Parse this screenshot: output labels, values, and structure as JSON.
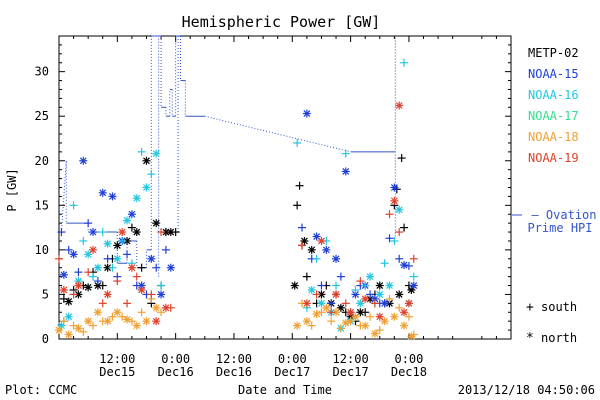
{
  "chart_data": {
    "type": "scatter",
    "title": "Hemispheric Power [GW]",
    "ylabel": "P [GW]",
    "xlabel": "Date and Time",
    "ylim": [
      0,
      34
    ],
    "yticks": [
      0,
      5,
      10,
      15,
      20,
      25,
      30
    ],
    "xlim": [
      0,
      93
    ],
    "xticks": [
      {
        "x": 12,
        "time": "12:00",
        "date": "Dec15"
      },
      {
        "x": 24,
        "time": "0:00",
        "date": "Dec16"
      },
      {
        "x": 36,
        "time": "12:00",
        "date": "Dec16"
      },
      {
        "x": 48,
        "time": "0:00",
        "date": "Dec17"
      },
      {
        "x": 60,
        "time": "12:00",
        "date": "Dec17"
      },
      {
        "x": 72,
        "time": "0:00",
        "date": "Dec18"
      }
    ],
    "grid": false,
    "legend_position": "right",
    "series": [
      {
        "name": "METP-02",
        "color": "#000000"
      },
      {
        "name": "NOAA-15",
        "color": "#1f3fd9"
      },
      {
        "name": "NOAA-16",
        "color": "#22c7e0"
      },
      {
        "name": "NOAA-17",
        "color": "#33e08f"
      },
      {
        "name": "NOAA-18",
        "color": "#f0a030"
      },
      {
        "name": "NOAA-19",
        "color": "#e0402a"
      }
    ],
    "ovation": {
      "label_line1": "— Ovation",
      "label_line2": "Prime HPI",
      "color": "#3355cc",
      "x": [
        0.5,
        1.5,
        1.5,
        6,
        6,
        12,
        12,
        14,
        14,
        16,
        16,
        18,
        18,
        19,
        19,
        21,
        21,
        22,
        22,
        22.8,
        22.8,
        23.3,
        23.3,
        24,
        24,
        25,
        25,
        26,
        26,
        30,
        60,
        61,
        63,
        65,
        67,
        69.2
      ],
      "y": [
        12,
        20,
        13,
        13,
        12,
        12,
        8.5,
        8.5,
        11,
        11,
        8,
        8,
        10,
        10,
        34,
        34,
        26,
        26,
        25,
        25,
        28,
        28,
        25,
        25,
        34,
        34,
        29,
        29,
        25,
        25,
        21,
        21,
        21,
        21,
        21,
        21
      ]
    },
    "ovation_drops": [
      {
        "x": 20.5,
        "y0": 7
      },
      {
        "x": 24.5,
        "y0": 12
      },
      {
        "x": 69.2,
        "y0": 11.5
      }
    ],
    "points": {
      "METP-02": {
        "plus": [
          [
            1,
            4.5
          ],
          [
            3,
            5.5
          ],
          [
            5,
            6
          ],
          [
            7,
            7.5
          ],
          [
            9,
            6
          ],
          [
            11,
            9
          ],
          [
            13,
            11
          ],
          [
            15,
            12.5
          ],
          [
            17,
            8
          ],
          [
            19,
            4
          ],
          [
            21,
            6
          ],
          [
            22,
            12
          ],
          [
            24,
            12
          ],
          [
            49,
            15
          ],
          [
            49.5,
            17.2
          ],
          [
            50,
            10.5
          ],
          [
            51,
            7
          ],
          [
            53,
            4
          ],
          [
            55,
            6
          ],
          [
            57,
            5
          ],
          [
            59,
            3
          ],
          [
            61,
            2
          ],
          [
            63,
            3
          ],
          [
            65,
            5
          ],
          [
            67,
            4
          ],
          [
            69,
            15
          ],
          [
            69.5,
            16.8
          ],
          [
            70.5,
            20.3
          ],
          [
            71,
            12.5
          ],
          [
            72,
            6
          ]
        ],
        "star": [
          [
            2,
            4.2
          ],
          [
            4,
            5
          ],
          [
            6,
            5.8
          ],
          [
            8,
            6
          ],
          [
            10,
            8
          ],
          [
            12,
            10.5
          ],
          [
            14,
            11
          ],
          [
            16,
            12
          ],
          [
            18,
            20
          ],
          [
            20,
            13
          ],
          [
            22,
            12
          ],
          [
            23,
            12
          ],
          [
            48.5,
            6
          ],
          [
            50.5,
            11
          ],
          [
            52,
            10
          ],
          [
            54,
            5
          ],
          [
            56,
            4
          ],
          [
            58,
            3.5
          ],
          [
            60,
            2.5
          ],
          [
            62,
            3
          ],
          [
            64,
            4.5
          ],
          [
            66,
            6
          ],
          [
            68,
            4
          ],
          [
            70,
            5
          ],
          [
            72.5,
            5.5
          ]
        ]
      },
      "NOAA-15": {
        "plus": [
          [
            0.5,
            12
          ],
          [
            2,
            10
          ],
          [
            4,
            7.5
          ],
          [
            6,
            13
          ],
          [
            8,
            6.5
          ],
          [
            10,
            9
          ],
          [
            12,
            7
          ],
          [
            14,
            9.5
          ],
          [
            16,
            6
          ],
          [
            18,
            5
          ],
          [
            20,
            8
          ],
          [
            22,
            10
          ],
          [
            50,
            12.5
          ],
          [
            52,
            9
          ],
          [
            54,
            6
          ],
          [
            56,
            4
          ],
          [
            58,
            7
          ],
          [
            60,
            3
          ],
          [
            62,
            6
          ],
          [
            64,
            5
          ],
          [
            66,
            4
          ],
          [
            68,
            11.3
          ],
          [
            70,
            9
          ],
          [
            72,
            8.2
          ]
        ],
        "star": [
          [
            1,
            7.2
          ],
          [
            3,
            9.5
          ],
          [
            5,
            20
          ],
          [
            7,
            12
          ],
          [
            9,
            16.4
          ],
          [
            11,
            16
          ],
          [
            13,
            11
          ],
          [
            15,
            14
          ],
          [
            17,
            6
          ],
          [
            19,
            9
          ],
          [
            21,
            5
          ],
          [
            23,
            8
          ],
          [
            51,
            25.3
          ],
          [
            53,
            11.5
          ],
          [
            55,
            10
          ],
          [
            57,
            9
          ],
          [
            59,
            18.8
          ],
          [
            61,
            5
          ],
          [
            63,
            6
          ],
          [
            65,
            4.5
          ],
          [
            67,
            4
          ],
          [
            69,
            17
          ],
          [
            71,
            8.3
          ],
          [
            73,
            6
          ]
        ]
      },
      "NOAA-16": {
        "plus": [
          [
            1,
            2
          ],
          [
            3,
            15
          ],
          [
            5,
            11
          ],
          [
            7,
            7
          ],
          [
            9,
            12
          ],
          [
            11,
            8
          ],
          [
            13,
            11
          ],
          [
            15,
            8.5
          ],
          [
            17,
            21
          ],
          [
            19,
            18.5
          ],
          [
            21,
            6
          ],
          [
            49,
            22
          ],
          [
            51,
            3.5
          ],
          [
            53,
            9
          ],
          [
            55,
            11
          ],
          [
            57,
            6
          ],
          [
            59,
            20.8
          ],
          [
            61,
            5.5
          ],
          [
            63,
            6
          ],
          [
            65,
            4
          ],
          [
            67,
            8.5
          ],
          [
            69,
            11
          ],
          [
            71,
            31
          ],
          [
            73,
            7
          ]
        ],
        "star": [
          [
            0.5,
            1.5
          ],
          [
            2,
            2.5
          ],
          [
            4,
            6.5
          ],
          [
            6,
            9.5
          ],
          [
            8,
            8
          ],
          [
            10,
            10.7
          ],
          [
            12,
            9
          ],
          [
            14,
            13.3
          ],
          [
            16,
            15.8
          ],
          [
            18,
            17
          ],
          [
            20,
            20.8
          ],
          [
            52,
            5.5
          ],
          [
            54,
            4
          ],
          [
            56,
            3
          ],
          [
            58,
            1.2
          ],
          [
            60,
            2
          ],
          [
            62,
            4
          ],
          [
            64,
            7
          ],
          [
            66,
            5
          ],
          [
            68,
            6
          ],
          [
            70,
            14.5
          ],
          [
            72,
            4
          ]
        ]
      },
      "NOAA-18": {
        "plus": [
          [
            1,
            2
          ],
          [
            3,
            1.5
          ],
          [
            5,
            0.8
          ],
          [
            7,
            1.5
          ],
          [
            9,
            2
          ],
          [
            11,
            2.5
          ],
          [
            13,
            2.5
          ],
          [
            15,
            2
          ],
          [
            17,
            3
          ],
          [
            19,
            4.5
          ],
          [
            21,
            3
          ],
          [
            50,
            4
          ],
          [
            52,
            1.5
          ],
          [
            54,
            3
          ],
          [
            56,
            2
          ],
          [
            58,
            1.2
          ],
          [
            60,
            2
          ],
          [
            62,
            1.5
          ],
          [
            64,
            2.5
          ],
          [
            66,
            1
          ],
          [
            68,
            4.5
          ],
          [
            70,
            3.5
          ],
          [
            72,
            2.5
          ],
          [
            73,
            0.5
          ]
        ],
        "star": [
          [
            0,
            1
          ],
          [
            2,
            0.5
          ],
          [
            4,
            1.2
          ],
          [
            6,
            2
          ],
          [
            8,
            3
          ],
          [
            10,
            2
          ],
          [
            12,
            3
          ],
          [
            14,
            2.2
          ],
          [
            16,
            1.5
          ],
          [
            18,
            2
          ],
          [
            20,
            3.5
          ],
          [
            49,
            1.5
          ],
          [
            51,
            2
          ],
          [
            53,
            2.8
          ],
          [
            55,
            3.5
          ],
          [
            57,
            3
          ],
          [
            59,
            1.8
          ],
          [
            61,
            2.5
          ],
          [
            63,
            1.5
          ],
          [
            65,
            0.6
          ],
          [
            67,
            2
          ],
          [
            69,
            2.5
          ],
          [
            71,
            1.5
          ],
          [
            72.5,
            0.3
          ]
        ]
      },
      "NOAA-19": {
        "plus": [
          [
            0,
            9
          ],
          [
            3,
            5
          ],
          [
            6,
            7.5
          ],
          [
            9,
            4
          ],
          [
            12,
            6.5
          ],
          [
            14,
            4
          ],
          [
            16,
            7
          ],
          [
            19,
            5
          ],
          [
            21,
            12
          ],
          [
            23,
            3.5
          ],
          [
            50,
            10.5
          ],
          [
            53,
            5
          ],
          [
            56,
            3
          ],
          [
            59,
            4
          ],
          [
            62,
            6.5
          ],
          [
            65,
            4
          ],
          [
            68,
            14
          ],
          [
            70,
            12
          ],
          [
            73,
            9
          ]
        ],
        "star": [
          [
            1,
            5.5
          ],
          [
            4,
            6
          ],
          [
            7,
            10
          ],
          [
            10,
            5
          ],
          [
            13,
            12
          ],
          [
            15,
            8
          ],
          [
            17,
            5.5
          ],
          [
            20,
            2
          ],
          [
            22,
            3.5
          ],
          [
            51,
            4
          ],
          [
            54,
            11
          ],
          [
            57,
            5
          ],
          [
            60,
            3
          ],
          [
            63,
            4.5
          ],
          [
            66,
            2.5
          ],
          [
            69,
            15.5
          ],
          [
            70,
            26.2
          ],
          [
            71,
            3
          ],
          [
            72,
            4
          ]
        ]
      }
    }
  },
  "legend_markers": [
    {
      "symbol": "+",
      "label": "south"
    },
    {
      "symbol": "*",
      "label": "north"
    }
  ],
  "footer": {
    "left": "Plot: CCMC",
    "center": "Date and Time",
    "right": "2013/12/18 04:50:06"
  }
}
